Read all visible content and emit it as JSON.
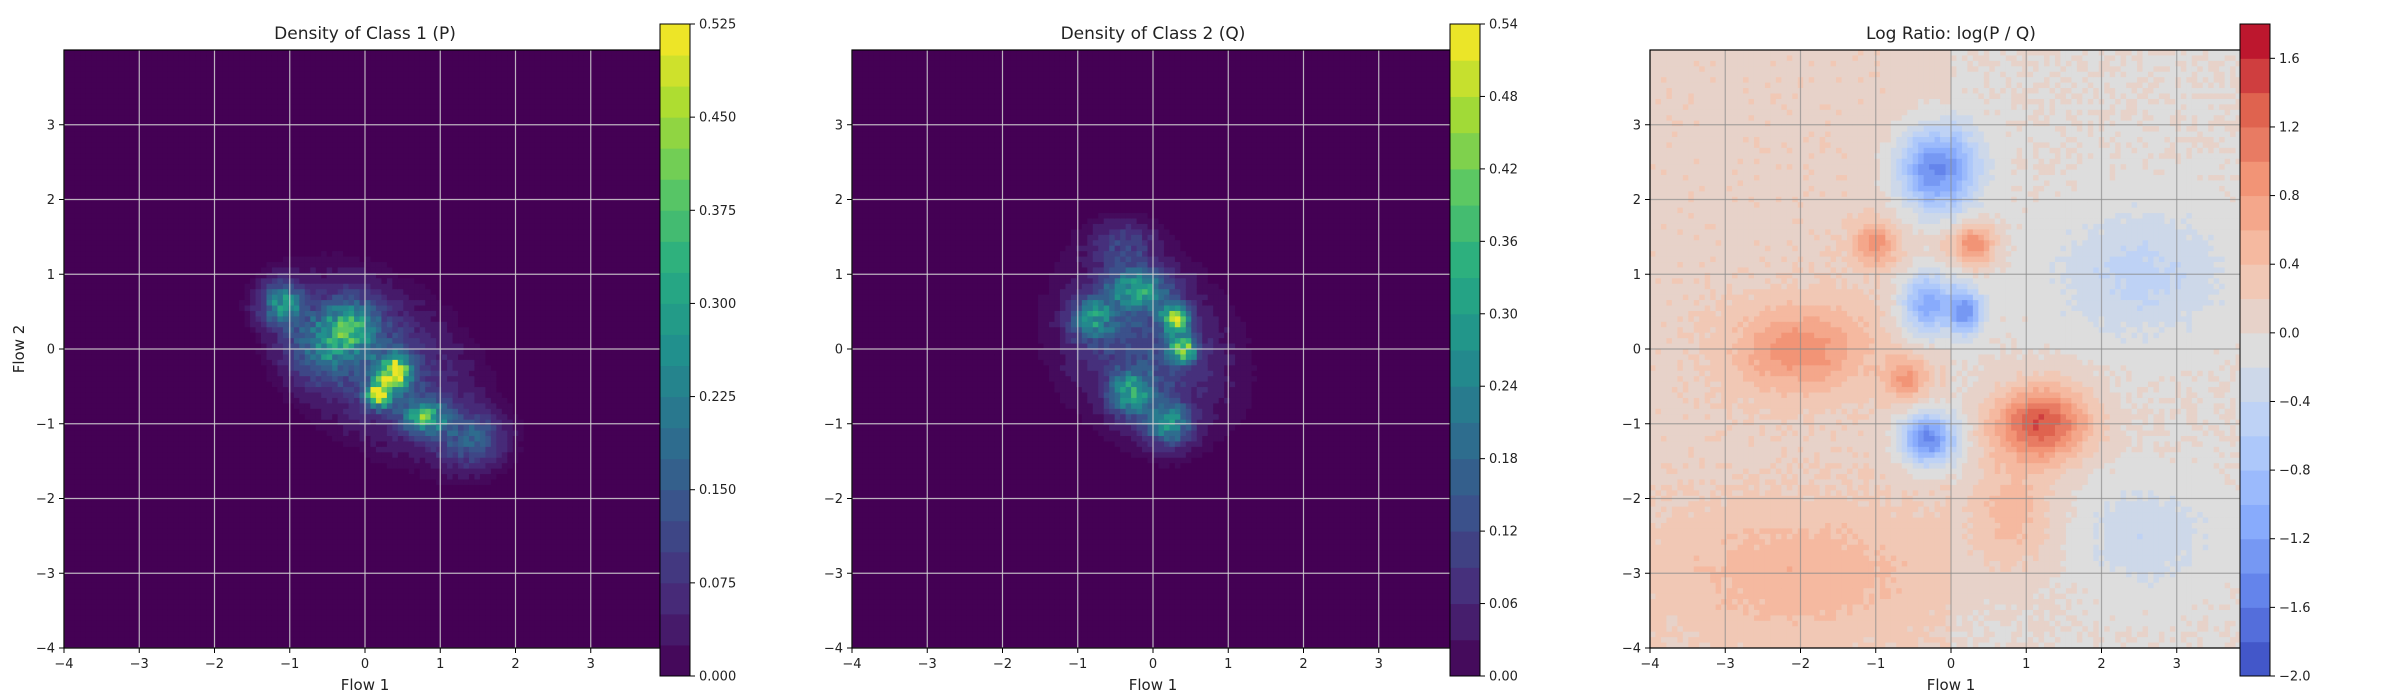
{
  "chart_data": [
    {
      "type": "heatmap",
      "title": "Density of Class 1 (P)",
      "xlabel": "Flow 1",
      "ylabel": "Flow 2",
      "xlim": [
        -4,
        4
      ],
      "ylim": [
        -4,
        4
      ],
      "x_ticks": [
        -4,
        -3,
        -2,
        -1,
        0,
        1,
        2,
        3
      ],
      "y_ticks": [
        -4,
        -3,
        -2,
        -1,
        0,
        1,
        2,
        3
      ],
      "grid": true,
      "colormap": "viridis",
      "colorbar": {
        "range": [
          0,
          0.525
        ],
        "levels": 21,
        "ticks": [
          "0.000",
          "0.075",
          "0.150",
          "0.225",
          "0.300",
          "0.375",
          "0.450",
          "0.525"
        ]
      },
      "density_blobs": [
        {
          "cx": 0.2,
          "cy": -0.2,
          "sx": 0.85,
          "sy": 0.55,
          "rot": -40,
          "amp": 0.12
        },
        {
          "cx": -0.2,
          "cy": 0.3,
          "sx": 0.25,
          "sy": 0.25,
          "rot": 0,
          "amp": 0.25
        },
        {
          "cx": 0.4,
          "cy": -0.3,
          "sx": 0.15,
          "sy": 0.15,
          "rot": 0,
          "amp": 0.4
        },
        {
          "cx": 0.2,
          "cy": -0.6,
          "sx": 0.12,
          "sy": 0.12,
          "rot": 0,
          "amp": 0.45
        },
        {
          "cx": 0.8,
          "cy": -0.9,
          "sx": 0.2,
          "sy": 0.15,
          "rot": 0,
          "amp": 0.3
        },
        {
          "cx": -1.1,
          "cy": 0.6,
          "sx": 0.2,
          "sy": 0.2,
          "rot": 0,
          "amp": 0.25
        },
        {
          "cx": 1.4,
          "cy": -1.2,
          "sx": 0.3,
          "sy": 0.25,
          "rot": 0,
          "amp": 0.15
        },
        {
          "cx": -0.6,
          "cy": 0.0,
          "sx": 0.3,
          "sy": 0.3,
          "rot": 0,
          "amp": 0.15
        }
      ]
    },
    {
      "type": "heatmap",
      "title": "Density of Class 2 (Q)",
      "xlabel": "Flow 1",
      "ylabel": "",
      "xlim": [
        -4,
        4
      ],
      "ylim": [
        -4,
        4
      ],
      "x_ticks": [
        -4,
        -3,
        -2,
        -1,
        0,
        1,
        2,
        3
      ],
      "y_ticks": [
        -4,
        -3,
        -2,
        -1,
        0,
        1,
        2,
        3
      ],
      "grid": true,
      "colormap": "viridis",
      "colorbar": {
        "range": [
          0,
          0.54
        ],
        "levels": 18,
        "ticks": [
          "0.00",
          "0.06",
          "0.12",
          "0.18",
          "0.24",
          "0.30",
          "0.36",
          "0.42",
          "0.48",
          "0.54"
        ]
      },
      "density_blobs": [
        {
          "cx": -0.1,
          "cy": 0.0,
          "sx": 0.75,
          "sy": 0.6,
          "rot": -45,
          "amp": 0.12
        },
        {
          "cx": -0.2,
          "cy": 0.8,
          "sx": 0.3,
          "sy": 0.2,
          "rot": 0,
          "amp": 0.25
        },
        {
          "cx": 0.3,
          "cy": 0.4,
          "sx": 0.12,
          "sy": 0.12,
          "rot": 0,
          "amp": 0.45
        },
        {
          "cx": 0.4,
          "cy": 0.0,
          "sx": 0.12,
          "sy": 0.12,
          "rot": 0,
          "amp": 0.4
        },
        {
          "cx": -0.8,
          "cy": 0.4,
          "sx": 0.2,
          "sy": 0.2,
          "rot": 0,
          "amp": 0.22
        },
        {
          "cx": -0.3,
          "cy": -0.6,
          "sx": 0.2,
          "sy": 0.2,
          "rot": 0,
          "amp": 0.25
        },
        {
          "cx": 0.2,
          "cy": -1.0,
          "sx": 0.2,
          "sy": 0.2,
          "rot": 0,
          "amp": 0.25
        },
        {
          "cx": -0.4,
          "cy": 1.4,
          "sx": 0.3,
          "sy": 0.2,
          "rot": 0,
          "amp": 0.1
        }
      ]
    },
    {
      "type": "heatmap",
      "title": "Log Ratio: log(P / Q)",
      "xlabel": "Flow 1",
      "ylabel": "",
      "xlim": [
        -4,
        4
      ],
      "ylim": [
        -4,
        4
      ],
      "x_ticks": [
        -4,
        -3,
        -2,
        -1,
        0,
        1,
        2,
        3
      ],
      "y_ticks": [
        -4,
        -3,
        -2,
        -1,
        0,
        1,
        2,
        3
      ],
      "grid": true,
      "colormap": "coolwarm",
      "colorbar": {
        "range": [
          -2.0,
          1.8
        ],
        "levels": 19,
        "ticks": [
          "−2.0",
          "−1.6",
          "−1.2",
          "−0.8",
          "−0.4",
          "0.0",
          "0.4",
          "0.8",
          "1.2",
          "1.6"
        ]
      },
      "ratio_blobs": [
        {
          "cx": -0.2,
          "cy": 2.4,
          "sx": 0.35,
          "sy": 0.4,
          "amp": -1.6
        },
        {
          "cx": -0.3,
          "cy": 0.6,
          "sx": 0.25,
          "sy": 0.3,
          "amp": -1.3
        },
        {
          "cx": -0.3,
          "cy": -1.2,
          "sx": 0.25,
          "sy": 0.25,
          "amp": -1.6
        },
        {
          "cx": 0.2,
          "cy": 0.5,
          "sx": 0.15,
          "sy": 0.2,
          "amp": -1.2
        },
        {
          "cx": 1.2,
          "cy": -1.0,
          "sx": 0.45,
          "sy": 0.35,
          "amp": 1.4
        },
        {
          "cx": 0.3,
          "cy": 1.4,
          "sx": 0.2,
          "sy": 0.2,
          "amp": 1.0
        },
        {
          "cx": -2.0,
          "cy": 0.0,
          "sx": 0.6,
          "sy": 0.4,
          "amp": 0.8
        },
        {
          "cx": -1.0,
          "cy": 1.4,
          "sx": 0.2,
          "sy": 0.2,
          "amp": 0.8
        },
        {
          "cx": -0.6,
          "cy": -0.4,
          "sx": 0.2,
          "sy": 0.2,
          "amp": 0.7
        },
        {
          "cx": 0.8,
          "cy": -2.2,
          "sx": 0.4,
          "sy": 0.5,
          "amp": 0.5
        },
        {
          "cx": 2.5,
          "cy": 1.0,
          "sx": 0.8,
          "sy": 0.6,
          "amp": -0.45
        },
        {
          "cx": 2.6,
          "cy": -2.5,
          "sx": 0.6,
          "sy": 0.5,
          "amp": -0.35
        },
        {
          "cx": -2.0,
          "cy": -3.0,
          "sx": 1.2,
          "sy": 0.6,
          "amp": 0.4
        }
      ]
    }
  ]
}
